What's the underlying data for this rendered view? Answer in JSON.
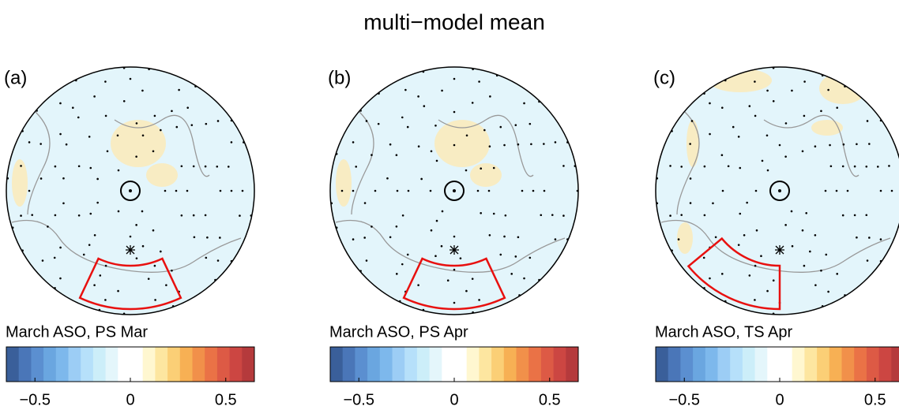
{
  "title": "multi−model mean",
  "colormap": [
    "#3a5f9a",
    "#4a76b8",
    "#5b8fd0",
    "#6aa6e0",
    "#7db8ec",
    "#9ccdf5",
    "#b6e0fa",
    "#cceef9",
    "#e4f6fb",
    "#ffffff",
    "#ffffff",
    "#fff7d0",
    "#fde6a0",
    "#fbcf76",
    "#f7b054",
    "#f1904a",
    "#ea7246",
    "#dd5a45",
    "#cc4642",
    "#b53a3c"
  ],
  "panels": [
    {
      "label": "(a)",
      "caption": "March ASO,  PS Mar",
      "colorbar": {
        "clim": [
          -0.65,
          0.65
        ],
        "ticks": [
          {
            "value": -0.5,
            "label": "−0.5"
          },
          0,
          0.5
        ]
      }
    },
    {
      "label": "(b)",
      "caption": "March ASO,  PS Apr",
      "colorbar": {
        "clim": [
          -0.65,
          0.65
        ],
        "ticks": [
          {
            "value": -0.5,
            "label": "−0.5"
          },
          0,
          0.5
        ]
      }
    },
    {
      "label": "(c)",
      "caption": "March ASO,  TS Apr",
      "colorbar": {
        "clim": [
          -0.65,
          0.65
        ],
        "ticks": [
          {
            "value": -0.5,
            "label": "−0.5"
          },
          0,
          0.5
        ]
      }
    }
  ]
}
